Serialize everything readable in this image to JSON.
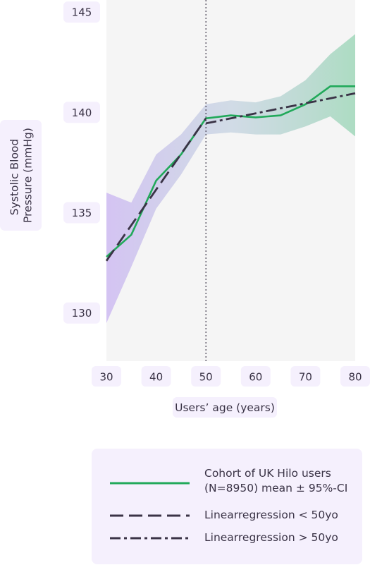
{
  "chart_data": {
    "type": "line",
    "title": "",
    "xlabel": "Users’ age (years)",
    "ylabel": "Systolic Blood Pressure (mmHg)",
    "ylabel_lines": [
      "Systolic Blood",
      "Pressure (mmHg)"
    ],
    "xlim": [
      30,
      80
    ],
    "ylim": [
      127.6,
      145.6
    ],
    "xticks": [
      30,
      40,
      50,
      60,
      70,
      80
    ],
    "yticks": [
      130,
      135,
      140,
      145
    ],
    "vline_x": 50,
    "grid": false,
    "legend_position": "bottom",
    "series": [
      {
        "name": "Cohort of UK Hilo users (N=8950) mean ± 95%-CI",
        "name_lines": [
          "Cohort of UK Hilo users",
          "(N=8950) mean ± 95%-CI"
        ],
        "style": "solid",
        "color": "#21a95a",
        "x": [
          30,
          35,
          40,
          45,
          50,
          55,
          60,
          65,
          70,
          75,
          80
        ],
        "y": [
          132.8,
          133.9,
          136.6,
          137.9,
          139.7,
          139.85,
          139.75,
          139.85,
          140.4,
          141.3,
          141.3
        ],
        "ci_lower": [
          129.5,
          132.3,
          135.2,
          136.9,
          138.9,
          139.0,
          138.9,
          138.9,
          139.3,
          139.8,
          138.8
        ],
        "ci_upper": [
          136.0,
          135.5,
          137.9,
          138.9,
          140.4,
          140.6,
          140.5,
          140.8,
          141.6,
          142.9,
          143.9
        ]
      },
      {
        "name": "Linearregression < 50yo",
        "style": "dashed",
        "color": "#3a3346",
        "x": [
          30,
          50
        ],
        "y": [
          132.6,
          139.7
        ]
      },
      {
        "name": "Linearregression > 50yo",
        "style": "dash-dot",
        "color": "#3a3346",
        "x": [
          50,
          80
        ],
        "y": [
          139.45,
          140.95
        ]
      }
    ],
    "colors": {
      "plot_background": "#f5f5f5",
      "label_background": "#f5f0fd",
      "ci_band_left": "#c9b3f2",
      "ci_band_right": "#8ed1ad"
    }
  }
}
